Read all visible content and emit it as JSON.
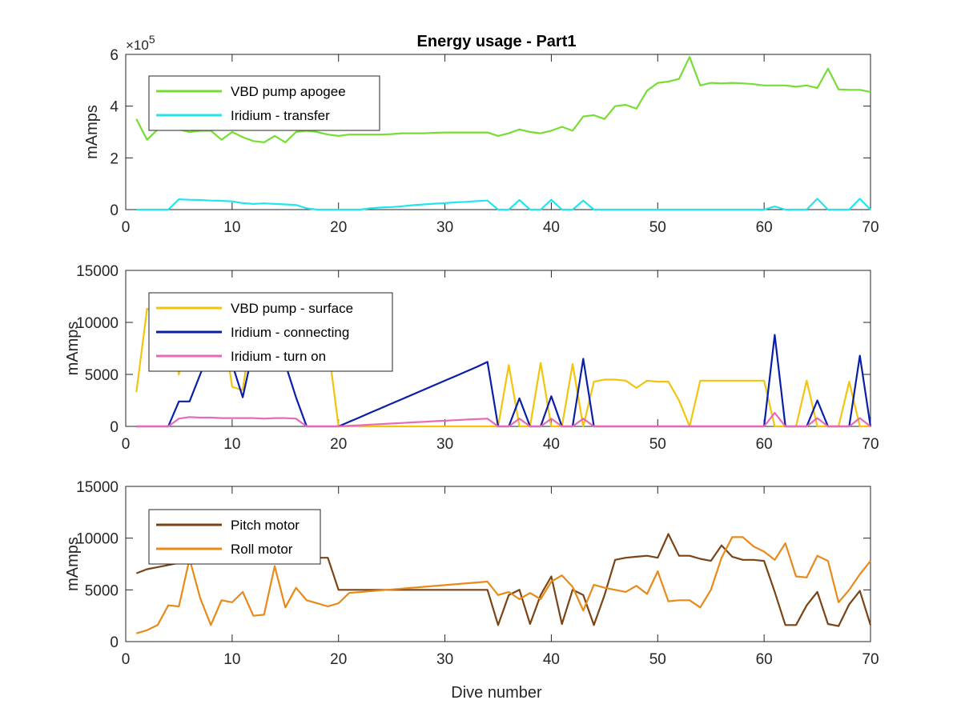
{
  "figure": {
    "title": "Energy usage - Part1",
    "xlabel": "Dive number"
  },
  "chart_data": [
    {
      "type": "line",
      "title": "Energy usage - Part1",
      "xlabel": "",
      "ylabel": "mAmps",
      "xlim": [
        0,
        70
      ],
      "ylim": [
        0,
        600000
      ],
      "xticks": [
        "0",
        "10",
        "20",
        "30",
        "40",
        "50",
        "60",
        "70"
      ],
      "yticks": [
        "0",
        "2",
        "4",
        "6"
      ],
      "ytick_values": [
        0,
        200000,
        400000,
        600000
      ],
      "y_exponent_base": "×10",
      "y_exponent_power": "5",
      "legend_position": "top-left",
      "grid": false,
      "series": [
        {
          "name": "VBD pump apogee",
          "color": "#77dd33",
          "x": [
            1,
            2,
            3,
            4,
            5,
            6,
            7,
            8,
            9,
            10,
            11,
            12,
            13,
            14,
            15,
            16,
            17,
            18,
            19,
            20,
            21,
            22,
            23,
            24,
            25,
            26,
            27,
            28,
            29,
            30,
            31,
            32,
            33,
            34,
            35,
            36,
            37,
            38,
            39,
            40,
            41,
            42,
            43,
            44,
            45,
            46,
            47,
            48,
            49,
            50,
            51,
            52,
            53,
            54,
            55,
            56,
            57,
            58,
            59,
            60,
            61,
            62,
            63,
            64,
            65,
            66,
            67,
            68,
            69,
            70
          ],
          "y": [
            350000,
            270000,
            310000,
            320000,
            310000,
            300000,
            305000,
            305000,
            270000,
            300000,
            280000,
            265000,
            260000,
            285000,
            260000,
            300000,
            305000,
            300000,
            290000,
            285000,
            290000,
            290000,
            290000,
            290000,
            292000,
            295000,
            295000,
            295000,
            297000,
            298000,
            298000,
            298000,
            298000,
            298000,
            285000,
            295000,
            310000,
            300000,
            295000,
            305000,
            320000,
            305000,
            360000,
            365000,
            350000,
            400000,
            405000,
            390000,
            460000,
            490000,
            495000,
            505000,
            590000,
            480000,
            490000,
            488000,
            490000,
            488000,
            485000,
            480000,
            480000,
            480000,
            475000,
            480000,
            470000,
            545000,
            465000,
            463000,
            463000,
            455000
          ]
        },
        {
          "name": "Iridium - transfer",
          "color": "#22e5ee",
          "x": [
            1,
            2,
            3,
            4,
            5,
            6,
            7,
            8,
            9,
            10,
            11,
            12,
            13,
            14,
            15,
            16,
            17,
            18,
            19,
            20,
            21,
            22,
            23,
            24,
            25,
            26,
            27,
            28,
            29,
            30,
            31,
            32,
            33,
            34,
            35,
            36,
            37,
            38,
            39,
            40,
            41,
            42,
            43,
            44,
            45,
            46,
            47,
            48,
            49,
            50,
            51,
            52,
            53,
            54,
            55,
            56,
            57,
            58,
            59,
            60,
            61,
            62,
            63,
            64,
            65,
            66,
            67,
            68,
            69,
            70
          ],
          "y": [
            0,
            0,
            0,
            0,
            40000,
            38000,
            37000,
            35000,
            34000,
            32000,
            25000,
            22000,
            24000,
            22000,
            20000,
            18000,
            5000,
            0,
            0,
            0,
            0,
            0,
            5000,
            8000,
            10000,
            13000,
            17000,
            20000,
            23000,
            25000,
            28000,
            30000,
            33000,
            35000,
            0,
            0,
            37000,
            0,
            0,
            38000,
            0,
            0,
            35000,
            0,
            0,
            0,
            0,
            0,
            0,
            0,
            0,
            0,
            0,
            0,
            0,
            0,
            0,
            0,
            0,
            0,
            12000,
            0,
            0,
            0,
            42000,
            0,
            0,
            0,
            42000,
            0
          ]
        }
      ]
    },
    {
      "type": "line",
      "title": "",
      "xlabel": "",
      "ylabel": "mAmps",
      "xlim": [
        0,
        70
      ],
      "ylim": [
        0,
        15000
      ],
      "xticks": [
        "0",
        "10",
        "20",
        "30",
        "40",
        "50",
        "60",
        "70"
      ],
      "yticks": [
        "0",
        "5000",
        "10000",
        "15000"
      ],
      "ytick_values": [
        0,
        5000,
        10000,
        15000
      ],
      "legend_position": "top-left",
      "grid": false,
      "series": [
        {
          "name": "VBD pump - surface",
          "color": "#f2c40c",
          "x": [
            1,
            2,
            3,
            4,
            5,
            6,
            7,
            8,
            9,
            10,
            11,
            12,
            13,
            14,
            15,
            16,
            17,
            18,
            19,
            20,
            21,
            22,
            23,
            24,
            25,
            26,
            27,
            28,
            29,
            30,
            31,
            32,
            33,
            34,
            35,
            36,
            37,
            38,
            39,
            40,
            41,
            42,
            43,
            44,
            45,
            46,
            47,
            48,
            49,
            50,
            51,
            52,
            53,
            54,
            55,
            56,
            57,
            58,
            59,
            60,
            61,
            62,
            63,
            64,
            65,
            66,
            67,
            68,
            69,
            70
          ],
          "y": [
            3300,
            11300,
            11000,
            10500,
            5000,
            10500,
            11000,
            10000,
            10500,
            3800,
            3500,
            10500,
            10000,
            9500,
            9000,
            8500,
            8000,
            8000,
            8000,
            0,
            0,
            0,
            0,
            0,
            0,
            0,
            0,
            0,
            0,
            0,
            0,
            0,
            0,
            0,
            0,
            5900,
            0,
            0,
            6100,
            0,
            0,
            6000,
            0,
            4300,
            4500,
            4500,
            4400,
            3700,
            4400,
            4300,
            4300,
            2500,
            0,
            4400,
            4400,
            4400,
            4400,
            4400,
            4400,
            4400,
            0,
            0,
            0,
            4400,
            0,
            0,
            0,
            4300,
            0,
            0
          ]
        },
        {
          "name": "Iridium - connecting",
          "color": "#0a1fa8",
          "x": [
            1,
            2,
            3,
            4,
            5,
            6,
            7,
            8,
            9,
            10,
            11,
            12,
            13,
            14,
            15,
            16,
            17,
            18,
            19,
            20,
            21,
            22,
            23,
            24,
            25,
            26,
            27,
            28,
            29,
            30,
            31,
            32,
            33,
            34,
            35,
            36,
            37,
            38,
            39,
            40,
            41,
            42,
            43,
            44,
            45,
            46,
            47,
            48,
            49,
            50,
            51,
            52,
            53,
            54,
            55,
            56,
            57,
            58,
            59,
            60,
            61,
            62,
            63,
            64,
            65,
            66,
            67,
            68,
            69,
            70
          ],
          "y": [
            0,
            0,
            0,
            0,
            2400,
            2400,
            5000,
            7500,
            6500,
            6000,
            2800,
            7500,
            7000,
            6500,
            6000,
            2800,
            0,
            0,
            0,
            0,
            440,
            880,
            1320,
            1760,
            2200,
            2640,
            3080,
            3520,
            3960,
            4400,
            4840,
            5280,
            5720,
            6200,
            0,
            0,
            2700,
            0,
            0,
            2900,
            0,
            0,
            6500,
            0,
            0,
            0,
            0,
            0,
            0,
            0,
            0,
            0,
            0,
            0,
            0,
            0,
            0,
            0,
            0,
            0,
            8800,
            0,
            0,
            0,
            2500,
            0,
            0,
            0,
            6800,
            0
          ]
        },
        {
          "name": "Iridium - turn on",
          "color": "#e66ab8",
          "x": [
            1,
            2,
            3,
            4,
            5,
            6,
            7,
            8,
            9,
            10,
            11,
            12,
            13,
            14,
            15,
            16,
            17,
            18,
            19,
            20,
            21,
            22,
            23,
            24,
            25,
            26,
            27,
            28,
            29,
            30,
            31,
            32,
            33,
            34,
            35,
            36,
            37,
            38,
            39,
            40,
            41,
            42,
            43,
            44,
            45,
            46,
            47,
            48,
            49,
            50,
            51,
            52,
            53,
            54,
            55,
            56,
            57,
            58,
            59,
            60,
            61,
            62,
            63,
            64,
            65,
            66,
            67,
            68,
            69,
            70
          ],
          "y": [
            0,
            0,
            0,
            0,
            750,
            900,
            850,
            850,
            800,
            800,
            800,
            800,
            750,
            800,
            800,
            750,
            0,
            0,
            0,
            0,
            60,
            110,
            170,
            220,
            280,
            330,
            390,
            440,
            500,
            550,
            600,
            650,
            700,
            750,
            0,
            0,
            750,
            0,
            0,
            750,
            0,
            0,
            750,
            0,
            0,
            0,
            0,
            0,
            0,
            0,
            0,
            0,
            0,
            0,
            0,
            0,
            0,
            0,
            0,
            0,
            1300,
            0,
            0,
            0,
            800,
            0,
            0,
            0,
            800,
            0
          ]
        }
      ]
    },
    {
      "type": "line",
      "title": "",
      "xlabel": "Dive number",
      "ylabel": "mAmps",
      "xlim": [
        0,
        70
      ],
      "ylim": [
        0,
        15000
      ],
      "xticks": [
        "0",
        "10",
        "20",
        "30",
        "40",
        "50",
        "60",
        "70"
      ],
      "yticks": [
        "0",
        "5000",
        "10000",
        "15000"
      ],
      "ytick_values": [
        0,
        5000,
        10000,
        15000
      ],
      "legend_position": "top-left",
      "grid": false,
      "series": [
        {
          "name": "Pitch motor",
          "color": "#7b4416",
          "x": [
            1,
            2,
            3,
            4,
            5,
            6,
            7,
            8,
            9,
            10,
            11,
            12,
            13,
            14,
            15,
            16,
            17,
            18,
            19,
            20,
            21,
            34,
            35,
            36,
            37,
            38,
            39,
            40,
            41,
            42,
            43,
            44,
            45,
            46,
            47,
            48,
            49,
            50,
            51,
            52,
            53,
            54,
            55,
            56,
            57,
            58,
            59,
            60,
            61,
            62,
            63,
            64,
            65,
            66,
            67,
            68,
            69,
            70
          ],
          "y": [
            6600,
            7000,
            7200,
            7400,
            7600,
            7800,
            7800,
            7800,
            7800,
            7800,
            7900,
            8000,
            8000,
            8000,
            8000,
            8000,
            8000,
            8100,
            8100,
            5000,
            5000,
            5000,
            1600,
            4500,
            5000,
            1700,
            4500,
            6300,
            1700,
            5000,
            4500,
            1600,
            4500,
            7900,
            8100,
            8200,
            8300,
            8100,
            10400,
            8300,
            8300,
            8000,
            7800,
            9300,
            8200,
            7900,
            7900,
            7800,
            4800,
            1600,
            1600,
            3500,
            4800,
            1700,
            1500,
            3600,
            4900,
            1600
          ]
        },
        {
          "name": "Roll motor",
          "color": "#e88a1a",
          "x": [
            1,
            2,
            3,
            4,
            5,
            6,
            7,
            8,
            9,
            10,
            11,
            12,
            13,
            14,
            15,
            16,
            17,
            18,
            19,
            20,
            21,
            34,
            35,
            36,
            37,
            38,
            39,
            40,
            41,
            42,
            43,
            44,
            45,
            46,
            47,
            48,
            49,
            50,
            51,
            52,
            53,
            54,
            55,
            56,
            57,
            58,
            59,
            60,
            61,
            62,
            63,
            64,
            65,
            66,
            67,
            68,
            69,
            70
          ],
          "y": [
            800,
            1100,
            1600,
            3500,
            3400,
            8000,
            4200,
            1600,
            4000,
            3800,
            4800,
            2500,
            2600,
            7300,
            3300,
            5200,
            4000,
            3700,
            3400,
            3700,
            4700,
            5800,
            4500,
            4800,
            4100,
            4700,
            4100,
            5800,
            6400,
            5300,
            3000,
            5500,
            5200,
            5000,
            4800,
            5400,
            4600,
            6800,
            3900,
            4000,
            4000,
            3300,
            5000,
            8100,
            10100,
            10100,
            9200,
            8700,
            7900,
            9500,
            6300,
            6200,
            8300,
            7800,
            3800,
            5000,
            6500,
            7800
          ]
        }
      ]
    }
  ]
}
